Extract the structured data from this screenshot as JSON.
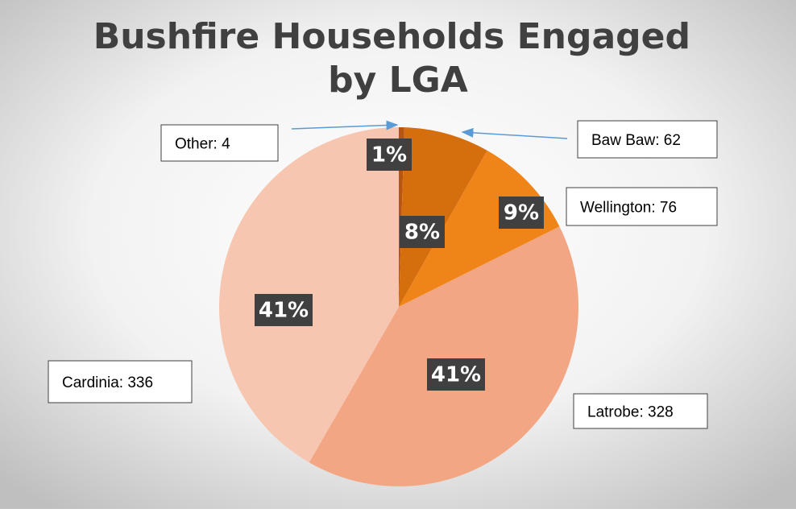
{
  "chart_data": {
    "type": "pie",
    "title": "Bushfire Households Engaged by LGA",
    "categories": [
      "Other",
      "Baw Baw",
      "Wellington",
      "Latrobe",
      "Cardinia"
    ],
    "values": [
      4,
      62,
      76,
      328,
      336
    ],
    "value_labels": [
      "Other: 4",
      "Baw Baw: 62",
      "Wellington: 76",
      "Latrobe: 328",
      "Cardinia: 336"
    ],
    "percent_labels": [
      "1%",
      "8%",
      "9%",
      "41%",
      "41%"
    ],
    "colors": [
      "#b85510",
      "#d56f0e",
      "#ef8419",
      "#f3a683",
      "#f7c6b1"
    ]
  }
}
